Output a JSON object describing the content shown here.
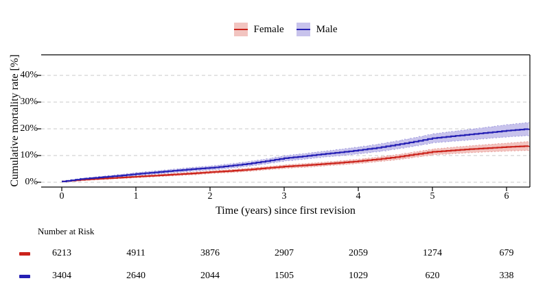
{
  "legend": {
    "items": [
      {
        "label": "Female",
        "line_color": "#cb231b",
        "fill_color": "#f2c4c0"
      },
      {
        "label": "Male",
        "line_color": "#2520b4",
        "fill_color": "#c8c3ec"
      }
    ]
  },
  "chart_data": {
    "type": "line",
    "subtype": "kaplan-meier-cumulative-incidence-with-confidence-bands",
    "title": "",
    "xlabel": "Time (years) since first revision",
    "ylabel": "Cumulative mortality rate [%]",
    "xlim": [
      -0.28,
      6.31
    ],
    "ylim": [
      -1.8,
      47.7
    ],
    "grid": "horizontal-dashed",
    "grid_color": "#c8c8c8",
    "legend_position": "top-center",
    "xticks": {
      "values": [
        0,
        1,
        2,
        3,
        4,
        5,
        6
      ],
      "labels": [
        "0",
        "1",
        "2",
        "3",
        "4",
        "5",
        "6"
      ]
    },
    "yticks": {
      "values": [
        0,
        10,
        20,
        30,
        40
      ],
      "labels": [
        "0%",
        "10%",
        "20%",
        "30%",
        "40%"
      ]
    },
    "x": [
      0,
      0.25,
      0.5,
      0.75,
      1,
      1.25,
      1.5,
      1.75,
      2,
      2.25,
      2.5,
      2.75,
      3,
      3.25,
      3.5,
      3.75,
      4,
      4.25,
      4.5,
      4.75,
      5,
      5.25,
      5.5,
      5.75,
      6,
      6.3
    ],
    "series": [
      {
        "name": "Female",
        "color": "#cb231b",
        "band_color": "#f2c4c0",
        "est": [
          0.3,
          0.9,
          1.3,
          1.7,
          2.1,
          2.5,
          2.9,
          3.3,
          3.8,
          4.2,
          4.7,
          5.3,
          5.9,
          6.3,
          6.8,
          7.3,
          7.9,
          8.6,
          9.4,
          10.4,
          11.4,
          11.9,
          12.4,
          12.8,
          13.2,
          13.6
        ],
        "ci_halfwidth": [
          0.1,
          0.2,
          0.25,
          0.3,
          0.35,
          0.4,
          0.45,
          0.5,
          0.5,
          0.55,
          0.6,
          0.6,
          0.65,
          0.7,
          0.7,
          0.75,
          0.8,
          0.85,
          0.95,
          1.0,
          1.1,
          1.2,
          1.3,
          1.4,
          1.5,
          1.7
        ]
      },
      {
        "name": "Male",
        "color": "#2520b4",
        "band_color": "#c8c3ec",
        "est": [
          0.3,
          1.2,
          1.8,
          2.4,
          3.1,
          3.7,
          4.3,
          4.9,
          5.4,
          6.1,
          6.9,
          7.9,
          9.0,
          9.7,
          10.5,
          11.2,
          12.0,
          12.9,
          14.0,
          15.2,
          16.5,
          17.2,
          17.9,
          18.6,
          19.3,
          20.0
        ],
        "ci_halfwidth": [
          0.15,
          0.3,
          0.4,
          0.5,
          0.55,
          0.6,
          0.65,
          0.7,
          0.75,
          0.8,
          0.85,
          0.9,
          1.0,
          1.05,
          1.1,
          1.2,
          1.3,
          1.4,
          1.5,
          1.6,
          1.7,
          1.85,
          2.0,
          2.15,
          2.3,
          2.5
        ]
      }
    ]
  },
  "number_at_risk": {
    "title": "Number at Risk",
    "time_points": [
      0,
      1,
      2,
      3,
      4,
      5,
      6
    ],
    "rows": [
      {
        "name": "Female",
        "color": "#cb231b",
        "counts": [
          "6213",
          "4911",
          "3876",
          "2907",
          "2059",
          "1274",
          "679"
        ]
      },
      {
        "name": "Male",
        "color": "#2520b4",
        "counts": [
          "3404",
          "2640",
          "2044",
          "1505",
          "1029",
          "620",
          "338"
        ]
      }
    ]
  }
}
